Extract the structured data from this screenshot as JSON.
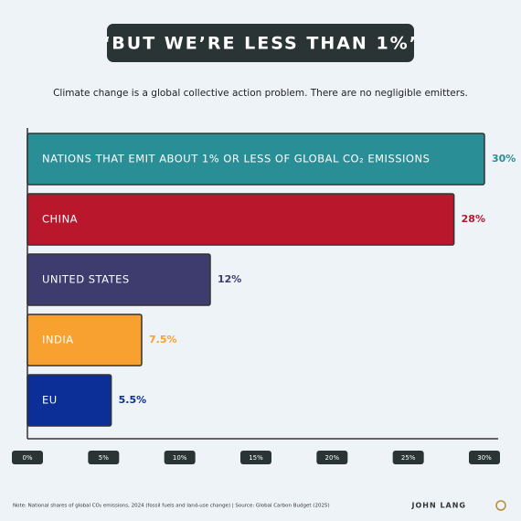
{
  "chart_data": {
    "type": "hbar",
    "title": "‘BUT WE’RE LESS THAN 1%’",
    "subtitle": "Climate change is a global collective action problem. There are no negligible emitters.",
    "categories": [
      "NATIONS THAT EMIT ABOUT 1% OR LESS OF GLOBAL CO₂ EMISSIONS",
      "CHINA",
      "UNITED STATES",
      "INDIA",
      "EU"
    ],
    "values": [
      30,
      28,
      12,
      7.5,
      5.5
    ],
    "value_labels": [
      "30%",
      "28%",
      "12%",
      "7.5%",
      "5.5%"
    ],
    "colors": [
      "#2a8e97",
      "#b8172c",
      "#3e3b6f",
      "#f8a130",
      "#0b2f97"
    ],
    "xlim": [
      0,
      30
    ],
    "xticks": [
      {
        "value": 0,
        "label": "0%"
      },
      {
        "value": 5,
        "label": "5%"
      },
      {
        "value": 10,
        "label": "10%"
      },
      {
        "value": 15,
        "label": "15%"
      },
      {
        "value": 20,
        "label": "20%"
      },
      {
        "value": 25,
        "label": "25%"
      },
      {
        "value": 30,
        "label": "30%"
      }
    ],
    "note": "Note: National shares of global CO₂ emissions, 2024 (fossil fuels and land-use change)  |  Source: Global Carbon Budget (2025)",
    "author": "JOHN LANG"
  }
}
